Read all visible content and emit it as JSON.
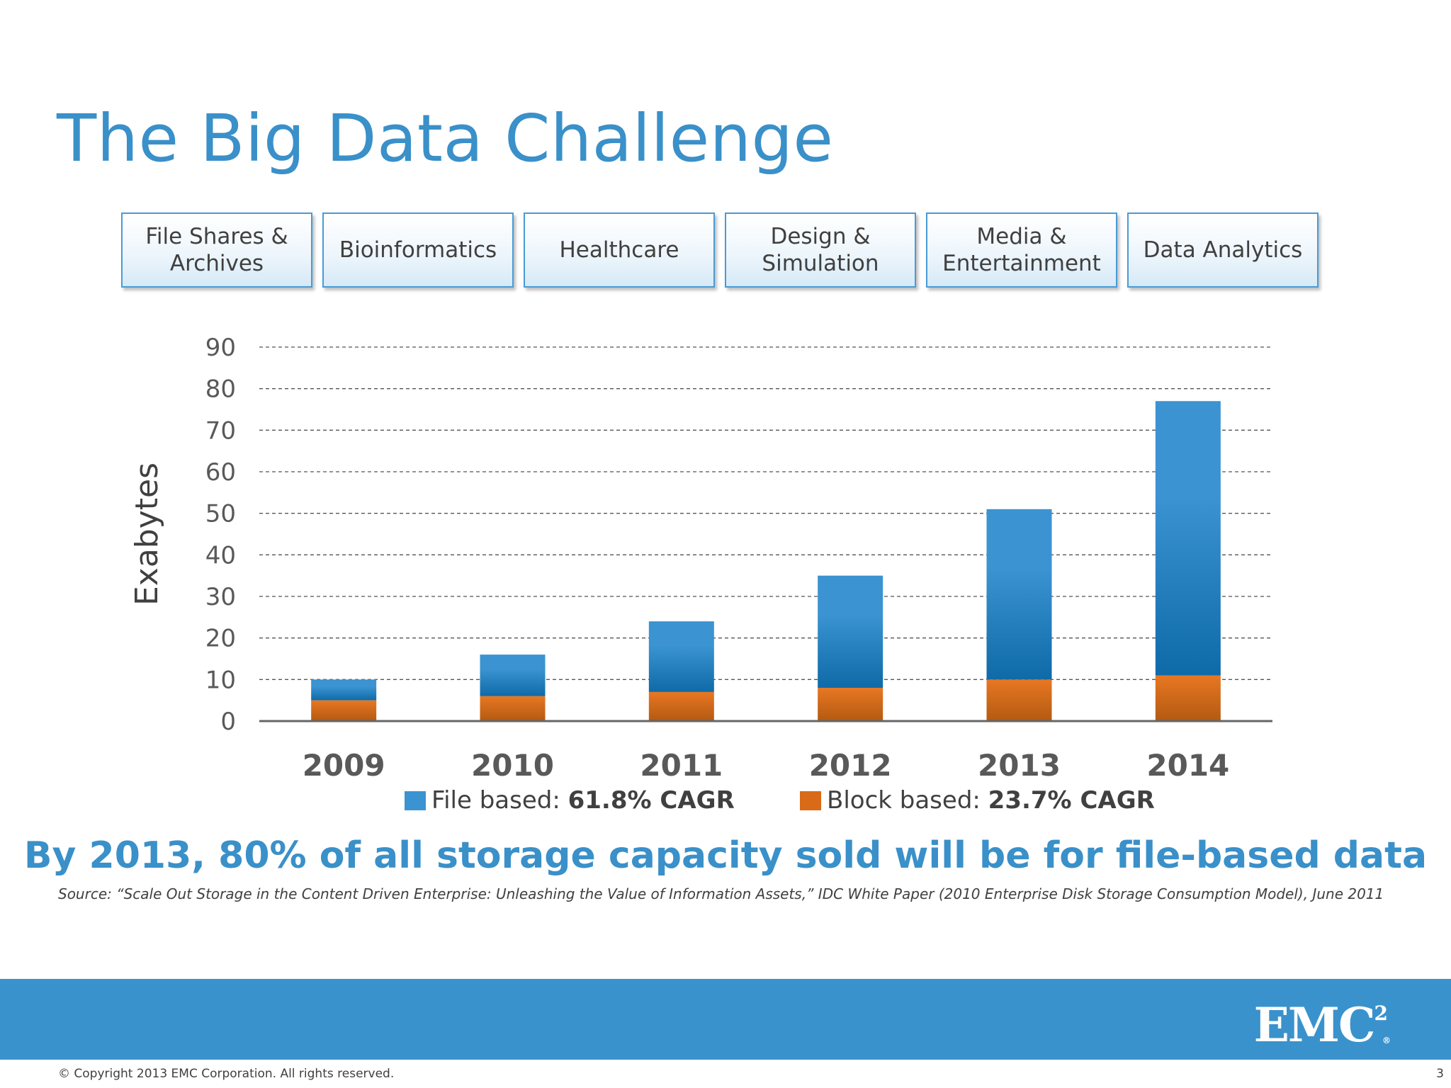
{
  "slide": {
    "title": "The Big Data Challenge",
    "tiles": [
      "File Shares &\nArchives",
      "Bioinformatics",
      "Healthcare",
      "Design &\nSimulation",
      "Media &\nEntertainment",
      "Data Analytics"
    ],
    "headline": "By 2013, 80% of all storage capacity sold will be for file-based data",
    "source": "Source: “Scale Out Storage in the Content Driven Enterprise: Unleashing the Value of Information Assets,” IDC White Paper (2010 Enterprise Disk Storage Consumption Model), June 2011",
    "copyright": "© Copyright 2013 EMC Corporation. All rights reserved.",
    "page_number": "3",
    "logo_text": "EMC",
    "logo_superscript": "2",
    "logo_reg": "®"
  },
  "legend": {
    "file_label": "File based: ",
    "file_value": "61.8% CAGR",
    "block_label": "Block based: ",
    "block_value": "23.7% CAGR"
  },
  "colors": {
    "accent": "#3a90c9",
    "file": "#3b93d1",
    "file_dark": "#0f6aa8",
    "block": "#e87722",
    "block_dark": "#b35a12",
    "text": "#404040",
    "footer": "#3a92cc"
  },
  "chart_data": {
    "type": "bar",
    "stacked": true,
    "categories": [
      "2009",
      "2010",
      "2011",
      "2012",
      "2013",
      "2014"
    ],
    "series": [
      {
        "name": "Block based",
        "values": [
          5,
          6,
          7,
          8,
          10,
          11
        ]
      },
      {
        "name": "File based",
        "values": [
          5,
          10,
          17,
          27,
          41,
          66
        ]
      }
    ],
    "ylabel": "Exabytes",
    "xlabel": "",
    "ylim": [
      0,
      90
    ],
    "yticks": [
      0,
      10,
      20,
      30,
      40,
      50,
      60,
      70,
      80,
      90
    ],
    "grid": true,
    "grid_style": "dashed",
    "legend_position": "bottom"
  }
}
